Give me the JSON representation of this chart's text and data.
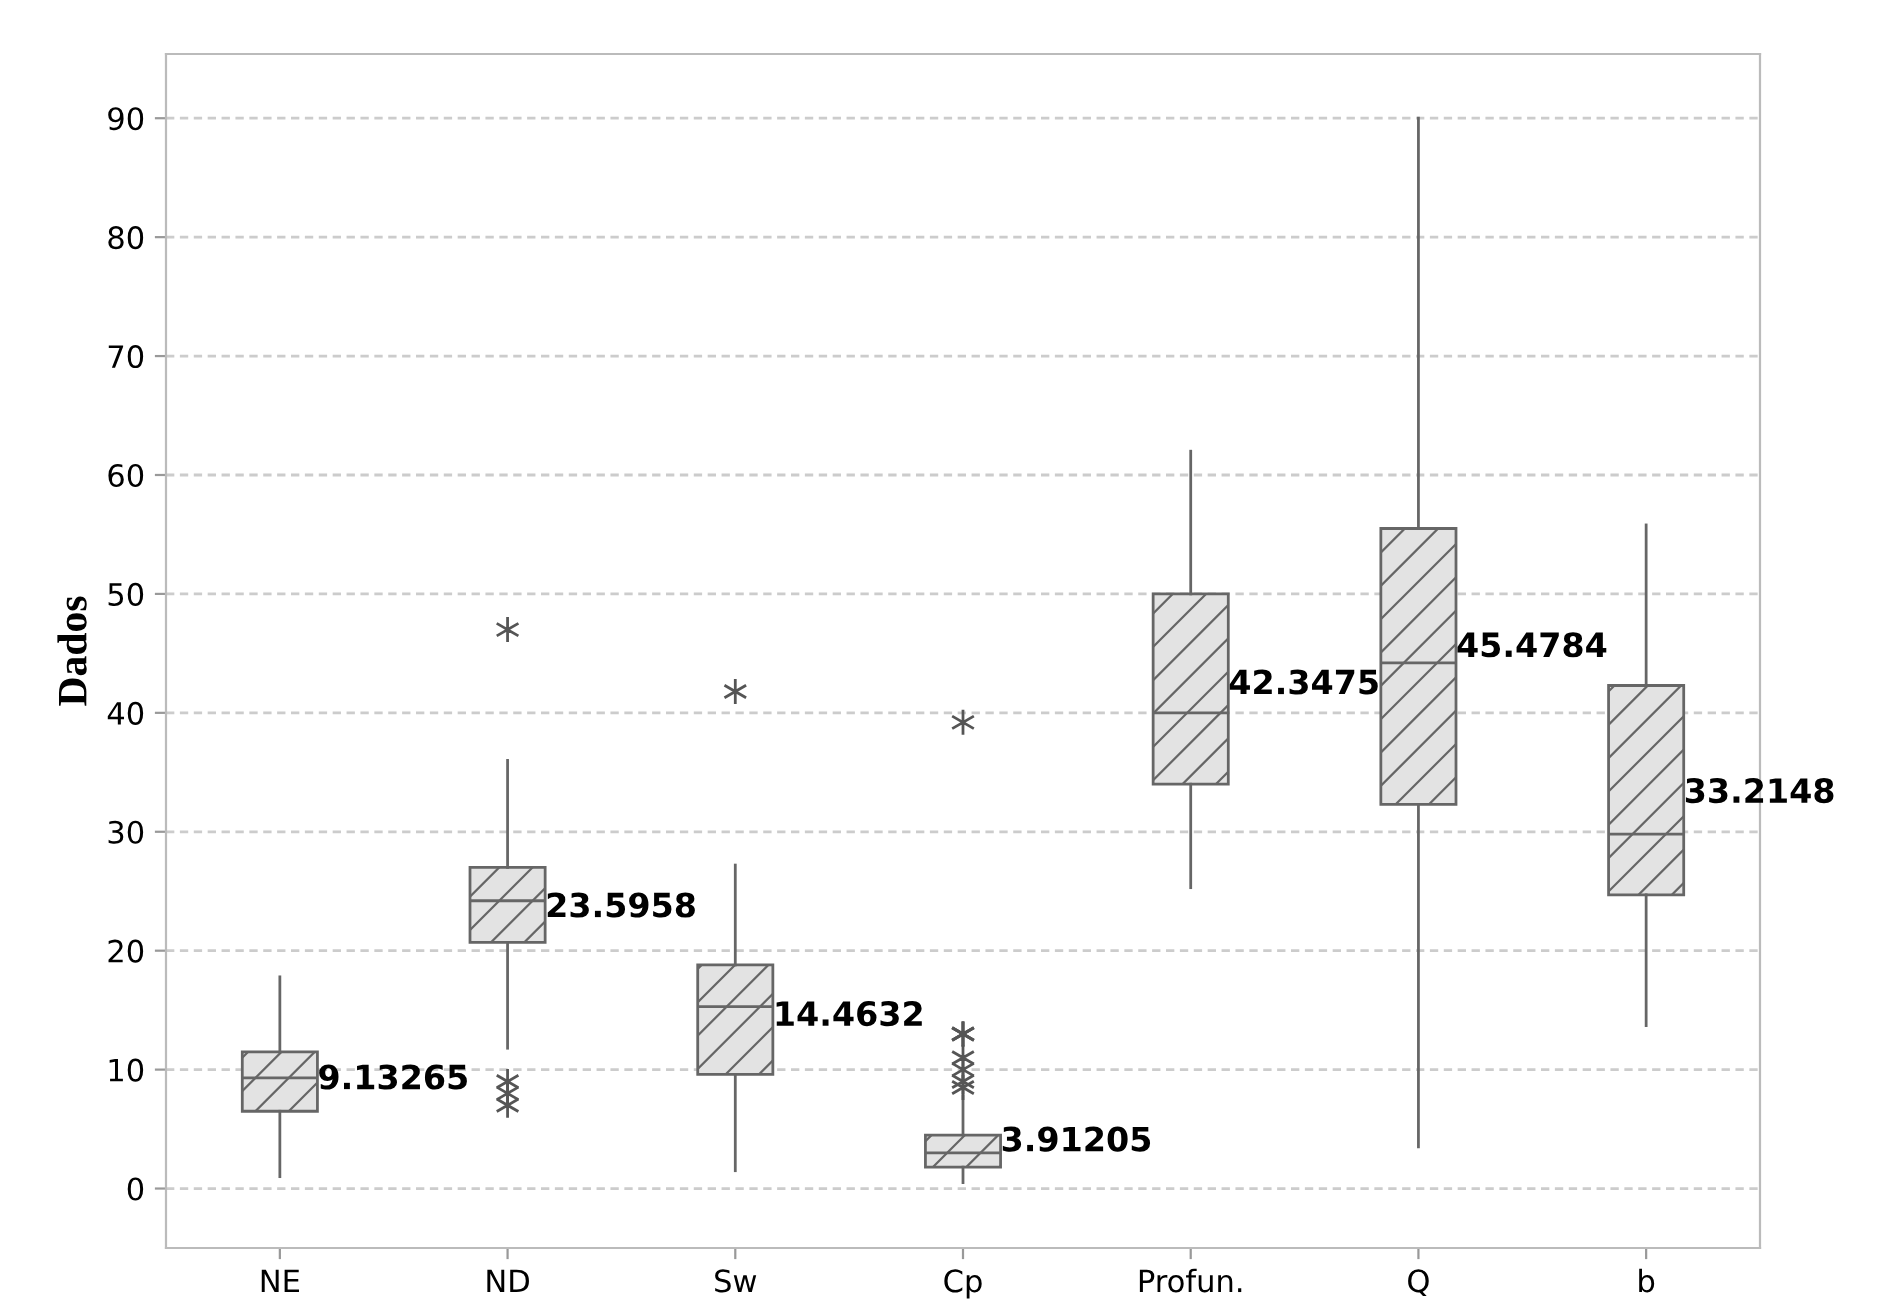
{
  "chart_data": {
    "type": "box",
    "ylabel": "Dados",
    "categories": [
      "NE",
      "ND",
      "Sw",
      "Cp",
      "Profun.",
      "Q",
      "b"
    ],
    "boxes": [
      {
        "low": 1,
        "q1": 6.5,
        "median": 9.3,
        "q3": 11.5,
        "high": 17.8
      },
      {
        "low": 11.8,
        "q1": 20.7,
        "median": 24.2,
        "q3": 27,
        "high": 36,
        "outliers": [
          47,
          9,
          8,
          7
        ]
      },
      {
        "low": 1.5,
        "q1": 9.6,
        "median": 15.3,
        "q3": 18.8,
        "high": 27.2,
        "outliers": [
          41.8
        ]
      },
      {
        "low": 0.5,
        "q1": 1.8,
        "median": 3,
        "q3": 4.5,
        "high": 7.8,
        "outliers": [
          8.5,
          9,
          10,
          11,
          13,
          13,
          13,
          39.2
        ]
      },
      {
        "low": 25.3,
        "q1": 34,
        "median": 40,
        "q3": 50,
        "high": 62
      },
      {
        "low": 3.5,
        "q1": 32.3,
        "median": 44.2,
        "q3": 55.5,
        "high": 90
      },
      {
        "low": 13.7,
        "q1": 24.7,
        "median": 29.8,
        "q3": 42.3,
        "high": 55.8
      }
    ],
    "annotations": [
      "9.13265",
      "23.5958",
      "14.4632",
      "3.91205",
      "42.3475",
      "45.4784",
      "33.2148"
    ],
    "marker": "star",
    "ylim": [
      -5,
      95.4
    ],
    "yticks": [
      0,
      10,
      20,
      30,
      40,
      50,
      60,
      70,
      80,
      90
    ],
    "grid": "y"
  }
}
